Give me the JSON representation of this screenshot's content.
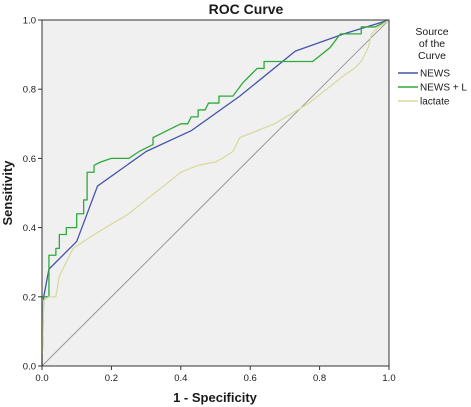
{
  "chart_data": {
    "type": "line",
    "title": "ROC Curve",
    "xlabel": "1 - Specificity",
    "ylabel": "Sensitivity",
    "xlim": [
      0,
      1
    ],
    "ylim": [
      0,
      1
    ],
    "xticks": [
      "0.0",
      "0.2",
      "0.4",
      "0.6",
      "0.8",
      "1.0"
    ],
    "yticks": [
      "0.0",
      "0.2",
      "0.4",
      "0.6",
      "0.8",
      "1.0"
    ],
    "grid": false,
    "plot_background": "#f0f0f0",
    "legend": {
      "title_lines": [
        "Source",
        "of the",
        "Curve"
      ],
      "position": "right"
    },
    "series": [
      {
        "name": "NEWS",
        "color": "#4455aa",
        "points": [
          [
            0,
            0
          ],
          [
            0.005,
            0.2
          ],
          [
            0.02,
            0.28
          ],
          [
            0.1,
            0.36
          ],
          [
            0.16,
            0.52
          ],
          [
            0.3,
            0.62
          ],
          [
            0.43,
            0.68
          ],
          [
            0.57,
            0.78
          ],
          [
            0.73,
            0.91
          ],
          [
            0.87,
            0.96
          ],
          [
            1,
            1
          ]
        ]
      },
      {
        "name": "NEWS + L",
        "color": "#2eaa3a",
        "points": [
          [
            0,
            0
          ],
          [
            0,
            0.2
          ],
          [
            0.02,
            0.2
          ],
          [
            0.02,
            0.32
          ],
          [
            0.04,
            0.32
          ],
          [
            0.04,
            0.34
          ],
          [
            0.05,
            0.34
          ],
          [
            0.05,
            0.38
          ],
          [
            0.07,
            0.38
          ],
          [
            0.07,
            0.4
          ],
          [
            0.1,
            0.4
          ],
          [
            0.1,
            0.44
          ],
          [
            0.12,
            0.44
          ],
          [
            0.12,
            0.48
          ],
          [
            0.13,
            0.48
          ],
          [
            0.13,
            0.56
          ],
          [
            0.15,
            0.56
          ],
          [
            0.15,
            0.58
          ],
          [
            0.17,
            0.59
          ],
          [
            0.2,
            0.6
          ],
          [
            0.25,
            0.6
          ],
          [
            0.28,
            0.62
          ],
          [
            0.32,
            0.64
          ],
          [
            0.32,
            0.66
          ],
          [
            0.36,
            0.68
          ],
          [
            0.4,
            0.7
          ],
          [
            0.42,
            0.7
          ],
          [
            0.43,
            0.72
          ],
          [
            0.45,
            0.72
          ],
          [
            0.45,
            0.74
          ],
          [
            0.47,
            0.74
          ],
          [
            0.48,
            0.76
          ],
          [
            0.51,
            0.76
          ],
          [
            0.51,
            0.78
          ],
          [
            0.55,
            0.78
          ],
          [
            0.58,
            0.82
          ],
          [
            0.6,
            0.84
          ],
          [
            0.62,
            0.86
          ],
          [
            0.64,
            0.86
          ],
          [
            0.64,
            0.88
          ],
          [
            0.78,
            0.88
          ],
          [
            0.83,
            0.92
          ],
          [
            0.86,
            0.96
          ],
          [
            0.92,
            0.96
          ],
          [
            0.92,
            0.98
          ],
          [
            0.96,
            0.98
          ],
          [
            1,
            1
          ]
        ]
      },
      {
        "name": "lactate",
        "color": "#dadaa0",
        "points": [
          [
            0,
            0
          ],
          [
            0.005,
            0.19
          ],
          [
            0.02,
            0.2
          ],
          [
            0.04,
            0.2
          ],
          [
            0.05,
            0.26
          ],
          [
            0.07,
            0.3
          ],
          [
            0.09,
            0.34
          ],
          [
            0.12,
            0.36
          ],
          [
            0.15,
            0.38
          ],
          [
            0.2,
            0.41
          ],
          [
            0.25,
            0.44
          ],
          [
            0.3,
            0.48
          ],
          [
            0.35,
            0.52
          ],
          [
            0.4,
            0.56
          ],
          [
            0.45,
            0.58
          ],
          [
            0.5,
            0.59
          ],
          [
            0.52,
            0.6
          ],
          [
            0.55,
            0.62
          ],
          [
            0.57,
            0.66
          ],
          [
            0.62,
            0.68
          ],
          [
            0.67,
            0.7
          ],
          [
            0.72,
            0.73
          ],
          [
            0.77,
            0.76
          ],
          [
            0.82,
            0.8
          ],
          [
            0.87,
            0.84
          ],
          [
            0.9,
            0.86
          ],
          [
            0.92,
            0.88
          ],
          [
            0.94,
            0.92
          ],
          [
            0.95,
            0.96
          ],
          [
            0.97,
            0.98
          ],
          [
            1,
            1
          ]
        ]
      }
    ]
  }
}
